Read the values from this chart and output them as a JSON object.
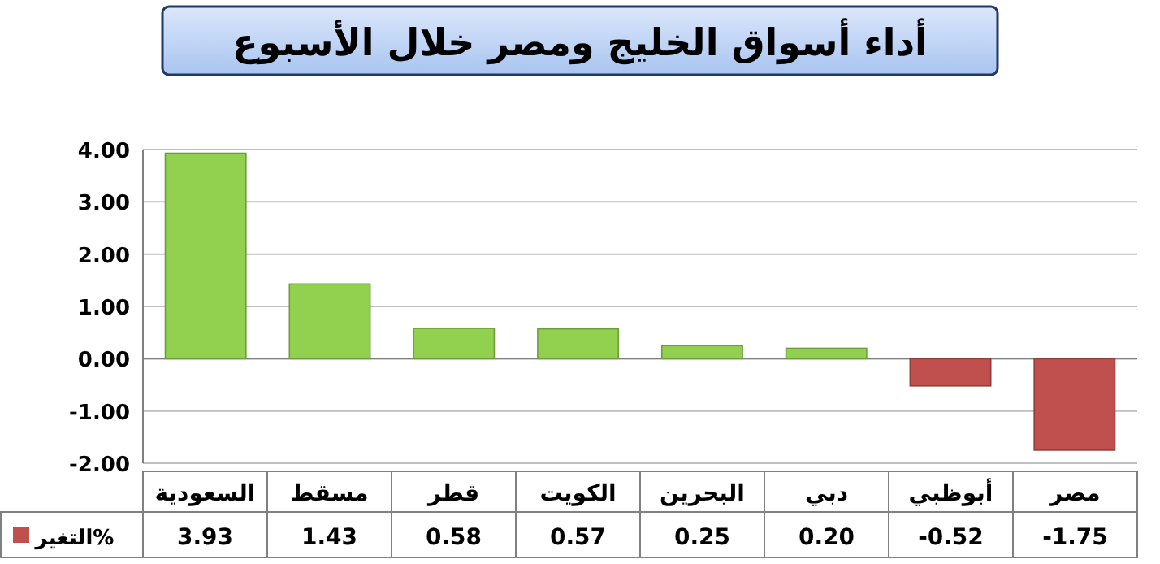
{
  "chart_data": {
    "type": "bar",
    "title": "أداء أسواق الخليج ومصر خلال الأسبوع",
    "categories": [
      "السعودية",
      "مسقط",
      "قطر",
      "الكويت",
      "البحرين",
      "دبي",
      "أبوظبي",
      "مصر"
    ],
    "series": [
      {
        "name": "التغير%",
        "color": "#c0504d",
        "values": [
          3.93,
          1.43,
          0.58,
          0.57,
          0.25,
          0.2,
          -0.52,
          -1.75
        ],
        "colors": [
          "#92d050",
          "#92d050",
          "#92d050",
          "#92d050",
          "#92d050",
          "#92d050",
          "#c0504d",
          "#c0504d"
        ],
        "value_labels": [
          "3.93",
          "1.43",
          "0.58",
          "0.57",
          "0.25",
          "0.20",
          "-0.52",
          "-1.75"
        ]
      }
    ],
    "ylim": [
      -2,
      4
    ],
    "yticks": [
      {
        "value": 4,
        "label": "4.00"
      },
      {
        "value": 3,
        "label": "3.00"
      },
      {
        "value": 2,
        "label": "2.00"
      },
      {
        "value": 1,
        "label": "1.00"
      },
      {
        "value": 0,
        "label": "0.00"
      },
      {
        "value": -1,
        "label": "-1.00"
      },
      {
        "value": -2,
        "label": "-2.00"
      }
    ],
    "grid": "y",
    "legend": "bottom left"
  }
}
